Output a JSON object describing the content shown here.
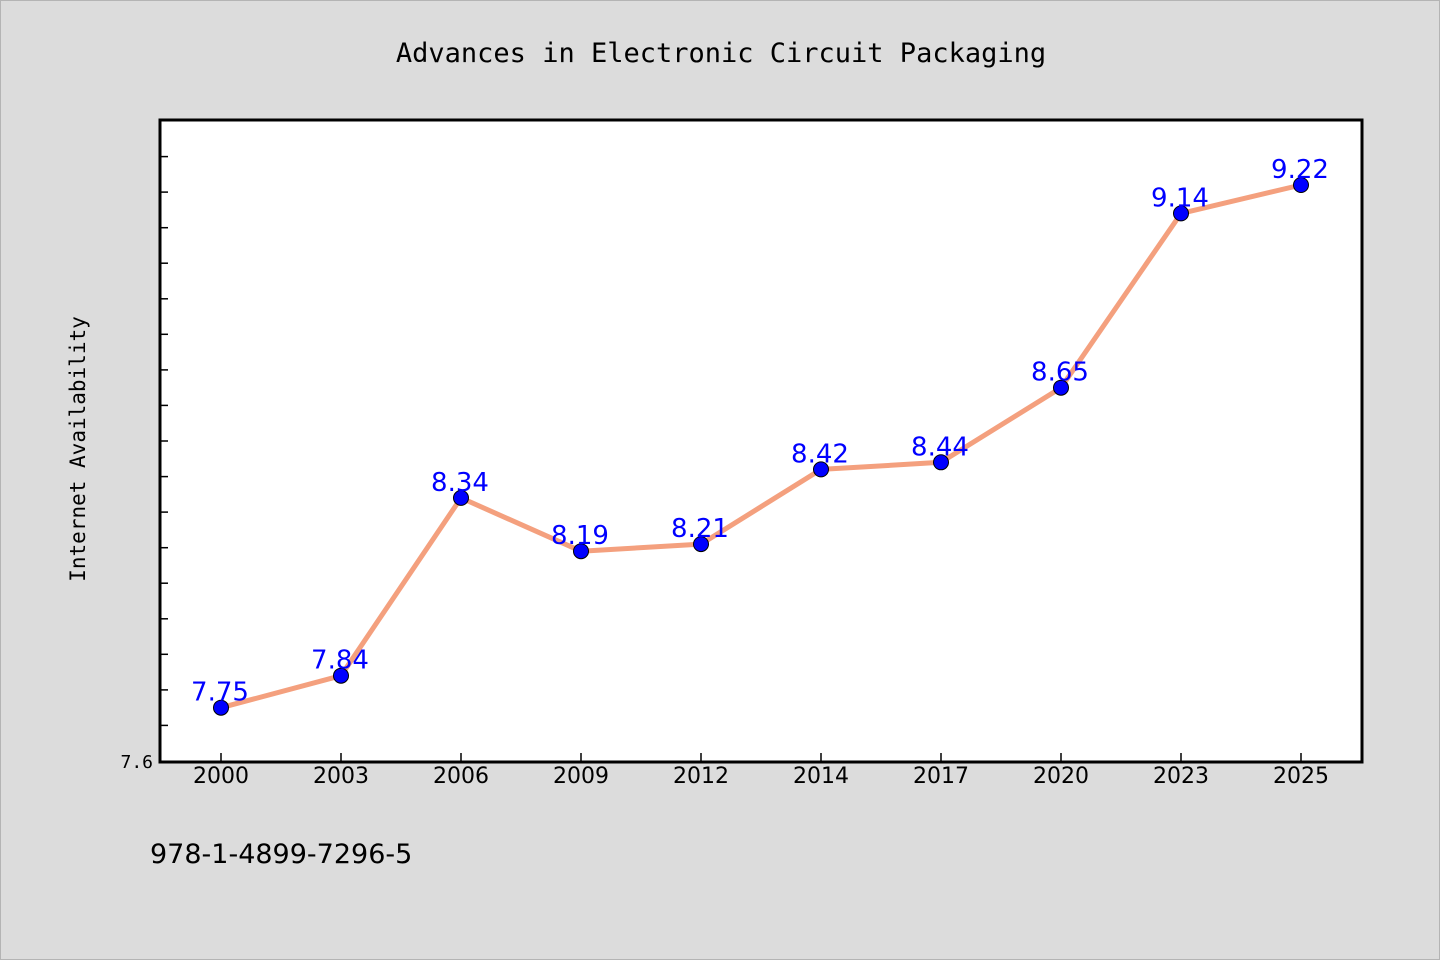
{
  "chart_data": {
    "type": "line",
    "title": "Advances in Electronic Circuit Packaging",
    "xlabel": "",
    "ylabel": "Internet Availability",
    "categories": [
      "2000",
      "2003",
      "2006",
      "2009",
      "2012",
      "2014",
      "2017",
      "2020",
      "2023",
      "2025"
    ],
    "series": [
      {
        "values": [
          7.75,
          7.84,
          8.34,
          8.19,
          8.21,
          8.42,
          8.44,
          8.65,
          9.14,
          9.22
        ],
        "data_labels": [
          "7.75",
          "7.84",
          "8.34",
          "8.19",
          "8.21",
          "8.42",
          "8.44",
          "8.65",
          "9.14",
          "9.22"
        ]
      }
    ],
    "ylim": [
      7.6,
      9.4
    ],
    "yticks": [
      "7.6"
    ],
    "grid": false,
    "colors": {
      "line": "#f4a07e",
      "marker": "#0000ff",
      "label": "#0000ff",
      "plot_bg": "#ffffff",
      "page_bg": "#dcdcdc"
    }
  },
  "footer": {
    "isbn": "978-1-4899-7296-5"
  }
}
